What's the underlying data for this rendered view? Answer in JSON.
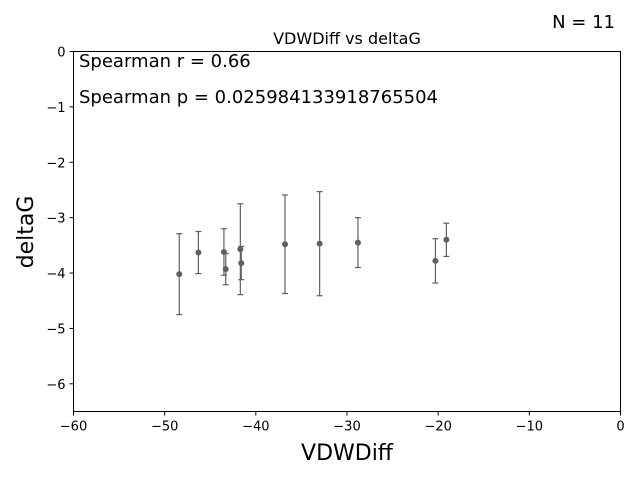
{
  "figure": {
    "n_label": "N = 11"
  },
  "chart_data": {
    "type": "scatter",
    "title": "VDWDiff vs deltaG",
    "xlabel": "VDWDiff",
    "ylabel": "deltaG",
    "xlim": [
      -60,
      0
    ],
    "ylim": [
      -6.5,
      0
    ],
    "xticks": [
      -60,
      -50,
      -40,
      -30,
      -20,
      -10,
      0
    ],
    "yticks": [
      0,
      -1,
      -2,
      -3,
      -4,
      -5,
      -6
    ],
    "xtick_labels": [
      "−60",
      "−50",
      "−40",
      "−30",
      "−20",
      "−10",
      "0"
    ],
    "ytick_labels": [
      "0",
      "−1",
      "−2",
      "−3",
      "−4",
      "−5",
      "−6"
    ],
    "grid": false,
    "marker_color": "#606060",
    "annotations": [
      "Spearman r = 0.66",
      "Spearman p = 0.025984133918765504"
    ],
    "points": [
      {
        "x": -48.4,
        "y": -4.02,
        "err": 0.73
      },
      {
        "x": -46.3,
        "y": -3.63,
        "err": 0.38
      },
      {
        "x": -43.5,
        "y": -3.62,
        "err": 0.42
      },
      {
        "x": -43.3,
        "y": -3.93,
        "err": 0.28
      },
      {
        "x": -41.7,
        "y": -3.57,
        "err": 0.82
      },
      {
        "x": -41.6,
        "y": -3.82,
        "err": 0.3
      },
      {
        "x": -36.8,
        "y": -3.48,
        "err": 0.89
      },
      {
        "x": -33.0,
        "y": -3.47,
        "err": 0.94
      },
      {
        "x": -28.8,
        "y": -3.45,
        "err": 0.45
      },
      {
        "x": -20.3,
        "y": -3.78,
        "err": 0.4
      },
      {
        "x": -19.1,
        "y": -3.4,
        "err": 0.3
      }
    ]
  }
}
